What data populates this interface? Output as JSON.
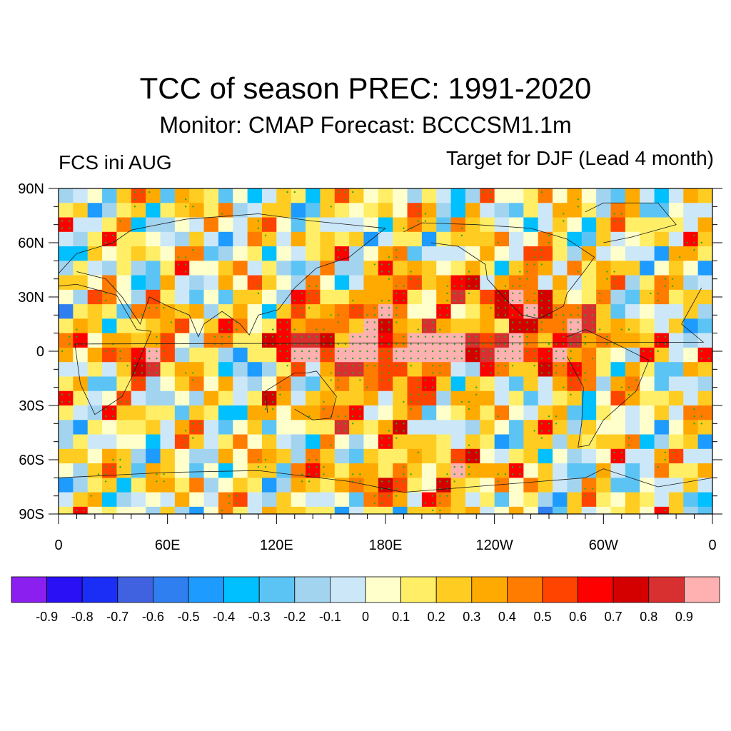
{
  "title": "TCC of season PREC: 1991-2020",
  "subtitle": "Monitor: CMAP   Forecast: BCCCSM1.1m",
  "left_label": "FCS ini AUG",
  "right_label": "Target for DJF (Lead 4 month)",
  "lat_ticks": [
    "90N",
    "60N",
    "30N",
    "0",
    "30S",
    "60S",
    "90S"
  ],
  "lon_ticks": [
    "0",
    "60E",
    "120E",
    "180E",
    "120W",
    "60W",
    "0"
  ],
  "colorbar": {
    "colors": [
      "#8b1ff0",
      "#2a10f5",
      "#1b2ef5",
      "#4162e0",
      "#2f7ff0",
      "#1e9bff",
      "#00c0ff",
      "#5cc4f5",
      "#a2d4f0",
      "#cce8f8",
      "#ffffcc",
      "#ffee66",
      "#ffcc22",
      "#ffaa00",
      "#ff7c00",
      "#ff4400",
      "#ff0000",
      "#d40000",
      "#d83030",
      "#ffb0b0"
    ],
    "labels": [
      "-0.9",
      "-0.8",
      "-0.7",
      "-0.6",
      "-0.5",
      "-0.4",
      "-0.3",
      "-0.2",
      "-0.1",
      "0",
      "0.1",
      "0.2",
      "0.3",
      "0.4",
      "0.5",
      "0.6",
      "0.7",
      "0.8",
      "0.9"
    ]
  },
  "field": {
    "description_of_structure": "",
    "max_tcc": 0.9,
    "min_tcc": -0.5
  }
}
